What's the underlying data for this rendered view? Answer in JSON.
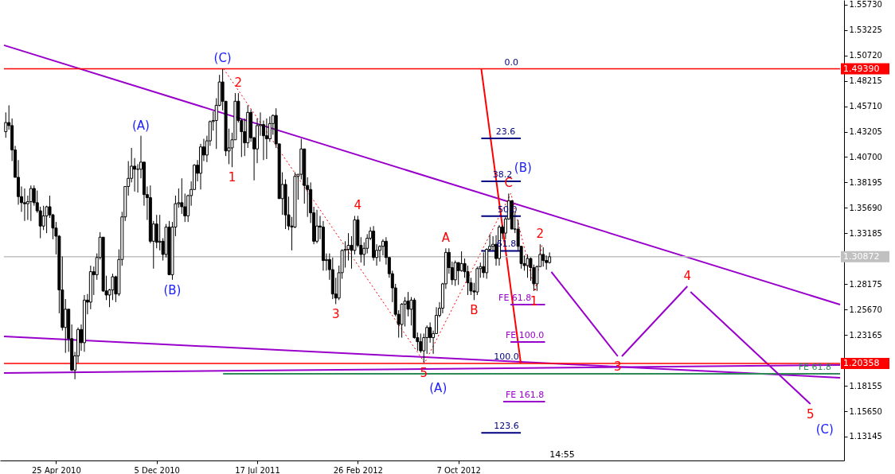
{
  "chart_data": {
    "type": "candlestick",
    "color": "#000000",
    "xlim": [
      "2009-12-30",
      "2015-02-04"
    ],
    "ylim": [
      1.1079,
      1.5618
    ],
    "xticks": [
      {
        "value": "2010-04-25",
        "label": "25 Apr 2010"
      },
      {
        "value": "2010-12-05",
        "label": "5 Dec 2010"
      },
      {
        "value": "2011-07-17",
        "label": "17 Jul 2011"
      },
      {
        "value": "2012-02-26",
        "label": "26 Feb 2012"
      },
      {
        "value": "2012-10-07",
        "label": "7 Oct 2012"
      }
    ],
    "yticks": [
      {
        "value": 1.5573,
        "label": "1.55730"
      },
      {
        "value": 1.53225,
        "label": "1.53225"
      },
      {
        "value": 1.5072,
        "label": "1.50720"
      },
      {
        "value": 1.48215,
        "label": "1.48215"
      },
      {
        "value": 1.4571,
        "label": "1.45710"
      },
      {
        "value": 1.43205,
        "label": "1.43205"
      },
      {
        "value": 1.407,
        "label": "1.40700"
      },
      {
        "value": 1.38195,
        "label": "1.38195"
      },
      {
        "value": 1.3569,
        "label": "1.35690"
      },
      {
        "value": 1.33185,
        "label": "1.33185"
      },
      {
        "value": 1.28175,
        "label": "1.28175"
      },
      {
        "value": 1.2567,
        "label": "1.25670"
      },
      {
        "value": 1.23165,
        "label": "1.23165"
      },
      {
        "value": 1.18155,
        "label": "1.18155"
      },
      {
        "value": 1.1565,
        "label": "1.15650"
      },
      {
        "value": 1.13145,
        "label": "1.13145"
      }
    ],
    "x": [
      "2010-01-03",
      "2010-01-10",
      "2010-01-17",
      "2010-01-24",
      "2010-01-31",
      "2010-02-07",
      "2010-02-14",
      "2010-02-21",
      "2010-02-28",
      "2010-03-07",
      "2010-03-14",
      "2010-03-21",
      "2010-03-28",
      "2010-04-04",
      "2010-04-11",
      "2010-04-18",
      "2010-04-25",
      "2010-05-02",
      "2010-05-09",
      "2010-05-16",
      "2010-05-23",
      "2010-05-30",
      "2010-06-06",
      "2010-06-13",
      "2010-06-20",
      "2010-06-27",
      "2010-07-04",
      "2010-07-11",
      "2010-07-18",
      "2010-07-25",
      "2010-08-01",
      "2010-08-08",
      "2010-08-15",
      "2010-08-22",
      "2010-08-29",
      "2010-09-05",
      "2010-09-12",
      "2010-09-19",
      "2010-09-26",
      "2010-10-03",
      "2010-10-10",
      "2010-10-17",
      "2010-10-24",
      "2010-10-31",
      "2010-11-07",
      "2010-11-14",
      "2010-11-21",
      "2010-11-28",
      "2010-12-05",
      "2010-12-12",
      "2010-12-19",
      "2010-12-26",
      "2011-01-02",
      "2011-01-09",
      "2011-01-16",
      "2011-01-23",
      "2011-01-30",
      "2011-02-06",
      "2011-02-13",
      "2011-02-20",
      "2011-02-27",
      "2011-03-06",
      "2011-03-13",
      "2011-03-20",
      "2011-03-27",
      "2011-04-03",
      "2011-04-10",
      "2011-04-17",
      "2011-04-24",
      "2011-05-01",
      "2011-05-08",
      "2011-05-15",
      "2011-05-22",
      "2011-05-29",
      "2011-06-05",
      "2011-06-12",
      "2011-06-19",
      "2011-06-26",
      "2011-07-03",
      "2011-07-10",
      "2011-07-17",
      "2011-07-24",
      "2011-07-31",
      "2011-08-07",
      "2011-08-14",
      "2011-08-21",
      "2011-08-28",
      "2011-09-04",
      "2011-09-11",
      "2011-09-18",
      "2011-09-25",
      "2011-10-02",
      "2011-10-09",
      "2011-10-16",
      "2011-10-23",
      "2011-10-30",
      "2011-11-06",
      "2011-11-13",
      "2011-11-20",
      "2011-11-27",
      "2011-12-04",
      "2011-12-11",
      "2011-12-18",
      "2011-12-25",
      "2012-01-01",
      "2012-01-08",
      "2012-01-15",
      "2012-01-22",
      "2012-01-29",
      "2012-02-05",
      "2012-02-12",
      "2012-02-19",
      "2012-02-26",
      "2012-03-04",
      "2012-03-11",
      "2012-03-18",
      "2012-03-25",
      "2012-04-01",
      "2012-04-08",
      "2012-04-15",
      "2012-04-22",
      "2012-04-29",
      "2012-05-06",
      "2012-05-13",
      "2012-05-20",
      "2012-05-27",
      "2012-06-03",
      "2012-06-10",
      "2012-06-17",
      "2012-06-24",
      "2012-07-01",
      "2012-07-08",
      "2012-07-15",
      "2012-07-22",
      "2012-07-29",
      "2012-08-05",
      "2012-08-12",
      "2012-08-19",
      "2012-08-26",
      "2012-09-02",
      "2012-09-09",
      "2012-09-16",
      "2012-09-23",
      "2012-09-30",
      "2012-10-07",
      "2012-10-14",
      "2012-10-21",
      "2012-10-28",
      "2012-11-04",
      "2012-11-11",
      "2012-11-18",
      "2012-11-25",
      "2012-12-02",
      "2012-12-09",
      "2012-12-16",
      "2012-12-23",
      "2012-12-30",
      "2013-01-06",
      "2013-01-13",
      "2013-01-20",
      "2013-01-27",
      "2013-02-03",
      "2013-02-10",
      "2013-02-17",
      "2013-02-24",
      "2013-03-03",
      "2013-03-10",
      "2013-03-17",
      "2013-03-24",
      "2013-03-31",
      "2013-04-07",
      "2013-04-14",
      "2013-04-21",
      "2013-04-28"
    ],
    "ohlc": [
      [
        1.432,
        1.451,
        1.426,
        1.441
      ],
      [
        1.441,
        1.458,
        1.434,
        1.438
      ],
      [
        1.438,
        1.445,
        1.403,
        1.414
      ],
      [
        1.414,
        1.418,
        1.387,
        1.387
      ],
      [
        1.387,
        1.404,
        1.36,
        1.368
      ],
      [
        1.368,
        1.378,
        1.353,
        1.362
      ],
      [
        1.362,
        1.376,
        1.344,
        1.361
      ],
      [
        1.361,
        1.369,
        1.345,
        1.363
      ],
      [
        1.363,
        1.379,
        1.344,
        1.376
      ],
      [
        1.376,
        1.379,
        1.359,
        1.362
      ],
      [
        1.362,
        1.374,
        1.352,
        1.354
      ],
      [
        1.354,
        1.358,
        1.327,
        1.339
      ],
      [
        1.339,
        1.359,
        1.335,
        1.349
      ],
      [
        1.349,
        1.359,
        1.332,
        1.358
      ],
      [
        1.358,
        1.369,
        1.347,
        1.35
      ],
      [
        1.35,
        1.351,
        1.326,
        1.337
      ],
      [
        1.337,
        1.343,
        1.311,
        1.329
      ],
      [
        1.329,
        1.33,
        1.253,
        1.276
      ],
      [
        1.276,
        1.309,
        1.236,
        1.239
      ],
      [
        1.239,
        1.267,
        1.214,
        1.257
      ],
      [
        1.257,
        1.257,
        1.215,
        1.228
      ],
      [
        1.228,
        1.242,
        1.196,
        1.197
      ],
      [
        1.197,
        1.215,
        1.188,
        1.211
      ],
      [
        1.211,
        1.239,
        1.204,
        1.237
      ],
      [
        1.237,
        1.242,
        1.216,
        1.224
      ],
      [
        1.224,
        1.271,
        1.215,
        1.266
      ],
      [
        1.266,
        1.272,
        1.252,
        1.264
      ],
      [
        1.264,
        1.3,
        1.257,
        1.294
      ],
      [
        1.294,
        1.299,
        1.271,
        1.291
      ],
      [
        1.291,
        1.312,
        1.286,
        1.308
      ],
      [
        1.308,
        1.333,
        1.306,
        1.328
      ],
      [
        1.328,
        1.328,
        1.274,
        1.275
      ],
      [
        1.275,
        1.29,
        1.266,
        1.271
      ],
      [
        1.271,
        1.277,
        1.259,
        1.276
      ],
      [
        1.276,
        1.292,
        1.266,
        1.289
      ],
      [
        1.289,
        1.29,
        1.264,
        1.272
      ],
      [
        1.272,
        1.316,
        1.27,
        1.306
      ],
      [
        1.306,
        1.353,
        1.3,
        1.348
      ],
      [
        1.348,
        1.378,
        1.344,
        1.378
      ],
      [
        1.378,
        1.403,
        1.369,
        1.386
      ],
      [
        1.386,
        1.416,
        1.382,
        1.398
      ],
      [
        1.398,
        1.406,
        1.373,
        1.395
      ],
      [
        1.395,
        1.4,
        1.372,
        1.395
      ],
      [
        1.395,
        1.428,
        1.386,
        1.402
      ],
      [
        1.402,
        1.402,
        1.359,
        1.37
      ],
      [
        1.37,
        1.378,
        1.345,
        1.367
      ],
      [
        1.367,
        1.379,
        1.322,
        1.324
      ],
      [
        1.324,
        1.344,
        1.297,
        1.341
      ],
      [
        1.341,
        1.35,
        1.317,
        1.323
      ],
      [
        1.323,
        1.35,
        1.315,
        1.324
      ],
      [
        1.324,
        1.327,
        1.305,
        1.311
      ],
      [
        1.311,
        1.341,
        1.308,
        1.338
      ],
      [
        1.338,
        1.344,
        1.291,
        1.291
      ],
      [
        1.291,
        1.343,
        1.286,
        1.338
      ],
      [
        1.338,
        1.369,
        1.329,
        1.361
      ],
      [
        1.361,
        1.376,
        1.357,
        1.362
      ],
      [
        1.362,
        1.386,
        1.351,
        1.358
      ],
      [
        1.358,
        1.371,
        1.343,
        1.349
      ],
      [
        1.349,
        1.37,
        1.343,
        1.369
      ],
      [
        1.369,
        1.383,
        1.359,
        1.375
      ],
      [
        1.375,
        1.4,
        1.375,
        1.399
      ],
      [
        1.399,
        1.404,
        1.383,
        1.391
      ],
      [
        1.391,
        1.42,
        1.375,
        1.417
      ],
      [
        1.417,
        1.425,
        1.403,
        1.409
      ],
      [
        1.409,
        1.428,
        1.402,
        1.423
      ],
      [
        1.423,
        1.443,
        1.418,
        1.442
      ],
      [
        1.442,
        1.452,
        1.433,
        1.443
      ],
      [
        1.443,
        1.465,
        1.415,
        1.458
      ],
      [
        1.458,
        1.488,
        1.457,
        1.481
      ],
      [
        1.481,
        1.494,
        1.453,
        1.462
      ],
      [
        1.462,
        1.462,
        1.408,
        1.413
      ],
      [
        1.413,
        1.435,
        1.4,
        1.416
      ],
      [
        1.416,
        1.431,
        1.397,
        1.424
      ],
      [
        1.424,
        1.47,
        1.424,
        1.462
      ],
      [
        1.462,
        1.47,
        1.441,
        1.443
      ],
      [
        1.443,
        1.445,
        1.407,
        1.432
      ],
      [
        1.432,
        1.445,
        1.408,
        1.421
      ],
      [
        1.421,
        1.458,
        1.416,
        1.451
      ],
      [
        1.451,
        1.454,
        1.422,
        1.426
      ],
      [
        1.426,
        1.427,
        1.384,
        1.415
      ],
      [
        1.415,
        1.445,
        1.401,
        1.438
      ],
      [
        1.438,
        1.451,
        1.428,
        1.439
      ],
      [
        1.439,
        1.443,
        1.404,
        1.428
      ],
      [
        1.428,
        1.445,
        1.405,
        1.425
      ],
      [
        1.425,
        1.447,
        1.422,
        1.44
      ],
      [
        1.44,
        1.449,
        1.429,
        1.448
      ],
      [
        1.448,
        1.455,
        1.416,
        1.42
      ],
      [
        1.42,
        1.42,
        1.366,
        1.366
      ],
      [
        1.366,
        1.392,
        1.35,
        1.38
      ],
      [
        1.38,
        1.385,
        1.336,
        1.35
      ],
      [
        1.35,
        1.368,
        1.335,
        1.339
      ],
      [
        1.339,
        1.348,
        1.315,
        1.338
      ],
      [
        1.338,
        1.392,
        1.337,
        1.388
      ],
      [
        1.388,
        1.39,
        1.365,
        1.39
      ],
      [
        1.39,
        1.425,
        1.385,
        1.415
      ],
      [
        1.415,
        1.415,
        1.361,
        1.379
      ],
      [
        1.379,
        1.387,
        1.348,
        1.375
      ],
      [
        1.375,
        1.382,
        1.342,
        1.352
      ],
      [
        1.352,
        1.358,
        1.321,
        1.324
      ],
      [
        1.324,
        1.355,
        1.322,
        1.339
      ],
      [
        1.339,
        1.349,
        1.326,
        1.338
      ],
      [
        1.338,
        1.344,
        1.295,
        1.305
      ],
      [
        1.305,
        1.312,
        1.295,
        1.306
      ],
      [
        1.306,
        1.312,
        1.286,
        1.296
      ],
      [
        1.296,
        1.308,
        1.267,
        1.272
      ],
      [
        1.272,
        1.288,
        1.262,
        1.268
      ],
      [
        1.268,
        1.3,
        1.266,
        1.293
      ],
      [
        1.293,
        1.316,
        1.287,
        1.315
      ],
      [
        1.315,
        1.324,
        1.298,
        1.316
      ],
      [
        1.316,
        1.332,
        1.305,
        1.32
      ],
      [
        1.32,
        1.329,
        1.297,
        1.315
      ],
      [
        1.315,
        1.349,
        1.311,
        1.345
      ],
      [
        1.345,
        1.349,
        1.318,
        1.32
      ],
      [
        1.32,
        1.328,
        1.303,
        1.311
      ],
      [
        1.311,
        1.323,
        1.3,
        1.317
      ],
      [
        1.317,
        1.331,
        1.312,
        1.327
      ],
      [
        1.327,
        1.338,
        1.325,
        1.334
      ],
      [
        1.334,
        1.339,
        1.305,
        1.308
      ],
      [
        1.308,
        1.321,
        1.3,
        1.315
      ],
      [
        1.315,
        1.32,
        1.304,
        1.319
      ],
      [
        1.319,
        1.326,
        1.31,
        1.324
      ],
      [
        1.324,
        1.328,
        1.301,
        1.308
      ],
      [
        1.308,
        1.308,
        1.288,
        1.292
      ],
      [
        1.292,
        1.295,
        1.264,
        1.278
      ],
      [
        1.278,
        1.282,
        1.25,
        1.252
      ],
      [
        1.252,
        1.256,
        1.229,
        1.242
      ],
      [
        1.242,
        1.263,
        1.229,
        1.262
      ],
      [
        1.262,
        1.269,
        1.24,
        1.265
      ],
      [
        1.265,
        1.274,
        1.25,
        1.257
      ],
      [
        1.257,
        1.269,
        1.241,
        1.266
      ],
      [
        1.266,
        1.268,
        1.228,
        1.229
      ],
      [
        1.229,
        1.234,
        1.216,
        1.225
      ],
      [
        1.225,
        1.233,
        1.214,
        1.216
      ],
      [
        1.216,
        1.233,
        1.2042,
        1.229
      ],
      [
        1.229,
        1.241,
        1.213,
        1.239
      ],
      [
        1.239,
        1.244,
        1.224,
        1.229
      ],
      [
        1.229,
        1.236,
        1.213,
        1.233
      ],
      [
        1.233,
        1.259,
        1.233,
        1.251
      ],
      [
        1.251,
        1.264,
        1.249,
        1.258
      ],
      [
        1.258,
        1.283,
        1.253,
        1.282
      ],
      [
        1.282,
        1.317,
        1.277,
        1.313
      ],
      [
        1.313,
        1.317,
        1.292,
        1.298
      ],
      [
        1.298,
        1.304,
        1.281,
        1.286
      ],
      [
        1.286,
        1.305,
        1.28,
        1.303
      ],
      [
        1.303,
        1.303,
        1.281,
        1.295
      ],
      [
        1.295,
        1.314,
        1.294,
        1.302
      ],
      [
        1.302,
        1.307,
        1.288,
        1.294
      ],
      [
        1.294,
        1.3,
        1.271,
        1.283
      ],
      [
        1.283,
        1.288,
        1.271,
        1.275
      ],
      [
        1.275,
        1.283,
        1.266,
        1.274
      ],
      [
        1.274,
        1.299,
        1.271,
        1.297
      ],
      [
        1.297,
        1.303,
        1.288,
        1.299
      ],
      [
        1.299,
        1.313,
        1.288,
        1.293
      ],
      [
        1.293,
        1.317,
        1.287,
        1.316
      ],
      [
        1.316,
        1.331,
        1.314,
        1.319
      ],
      [
        1.319,
        1.329,
        1.315,
        1.321
      ],
      [
        1.321,
        1.33,
        1.3,
        1.307
      ],
      [
        1.307,
        1.34,
        1.3,
        1.338
      ],
      [
        1.338,
        1.34,
        1.326,
        1.332
      ],
      [
        1.332,
        1.348,
        1.326,
        1.346
      ],
      [
        1.346,
        1.3711,
        1.345,
        1.364
      ],
      [
        1.364,
        1.364,
        1.336,
        1.336
      ],
      [
        1.336,
        1.352,
        1.332,
        1.336
      ],
      [
        1.336,
        1.345,
        1.315,
        1.319
      ],
      [
        1.319,
        1.319,
        1.297,
        1.302
      ],
      [
        1.302,
        1.31,
        1.295,
        1.3
      ],
      [
        1.3,
        1.311,
        1.288,
        1.307
      ],
      [
        1.307,
        1.308,
        1.285,
        1.298
      ],
      [
        1.298,
        1.301,
        1.275,
        1.282
      ],
      [
        1.282,
        1.3,
        1.275,
        1.299
      ],
      [
        1.299,
        1.321,
        1.299,
        1.311
      ],
      [
        1.311,
        1.318,
        1.299,
        1.305
      ],
      [
        1.305,
        1.31,
        1.296,
        1.303
      ],
      [
        1.303,
        1.313,
        1.302,
        1.3087
      ]
    ],
    "series": [
      {
        "type": "line",
        "color": "#9900cc",
        "x": [
          "2009-12-30",
          "2015-02-04"
        ],
        "values": [
          1.5172,
          1.2616
        ]
      },
      {
        "type": "line",
        "color": "#9900cc",
        "x": [
          "2009-12-30",
          "2015-02-04"
        ],
        "values": [
          1.2302,
          1.1895
        ]
      },
      {
        "type": "line",
        "color": "#9900cc",
        "x": [
          "2009-12-30",
          "2015-02-04"
        ],
        "values": [
          1.1942,
          1.202
        ]
      },
      {
        "type": "line",
        "color": "#2e8b57",
        "x": [
          "2011-05-02",
          "2015-02-04"
        ],
        "values": [
          1.1934,
          1.1934
        ]
      },
      {
        "type": "line",
        "color": "#ff0000",
        "line_style": "dotted",
        "x": [
          "2011-05-03",
          "2012-07-24",
          "2013-02-01",
          "2013-03-27",
          "2013-04-11"
        ],
        "values": [
          1.494,
          1.2042,
          1.3711,
          1.2745,
          1.3203
        ]
      },
      {
        "type": "line",
        "color": "#ff0000",
        "x": [
          "2012-11-27",
          "2013-02-23"
        ],
        "values": [
          1.4939,
          1.2036
        ]
      },
      {
        "type": "line",
        "color": "#000080",
        "x": [
          "2012-11-27",
          "2013-02-23"
        ],
        "values": [
          1.4254,
          1.4254
        ]
      },
      {
        "type": "line",
        "color": "#000080",
        "x": [
          "2012-11-27",
          "2013-02-23"
        ],
        "values": [
          1.383,
          1.383
        ]
      },
      {
        "type": "line",
        "color": "#000080",
        "x": [
          "2012-11-27",
          "2013-02-23"
        ],
        "values": [
          1.3488,
          1.3488
        ]
      },
      {
        "type": "line",
        "color": "#000080",
        "x": [
          "2012-11-27",
          "2013-02-23"
        ],
        "values": [
          1.3145,
          1.3145
        ]
      },
      {
        "type": "line",
        "color": "#000080",
        "x": [
          "2012-11-27",
          "2013-02-23"
        ],
        "values": [
          1.1351,
          1.1351
        ]
      },
      {
        "type": "line",
        "color": "#9900cc",
        "x": [
          "2013-01-31",
          "2013-04-18"
        ],
        "values": [
          1.2616,
          1.2616
        ]
      },
      {
        "type": "line",
        "color": "#9900cc",
        "x": [
          "2013-01-31",
          "2013-04-18"
        ],
        "values": [
          1.2247,
          1.2247
        ]
      },
      {
        "type": "line",
        "color": "#9900cc",
        "x": [
          "2013-01-15",
          "2013-04-18"
        ],
        "values": [
          1.1659,
          1.1659
        ]
      },
      {
        "type": "line",
        "color": "#9900cc",
        "x": [
          "2013-05-02",
          "2013-09-27"
        ],
        "values": [
          1.2937,
          1.2106
        ]
      },
      {
        "type": "line",
        "color": "#9900cc",
        "x": [
          "2013-10-06",
          "2014-03-01"
        ],
        "values": [
          1.2106,
          1.2796
        ]
      },
      {
        "type": "line",
        "color": "#9900cc",
        "x": [
          "2014-03-08",
          "2014-11-30"
        ],
        "values": [
          1.2741,
          1.1636
        ]
      }
    ],
    "ref_lines": [
      {
        "axis": "y",
        "value": 1.4939,
        "label": "1.49390",
        "color": "#ff0000"
      },
      {
        "axis": "y",
        "value": 1.20358,
        "label": "1.20358",
        "color": "#ff0000"
      },
      {
        "axis": "y",
        "value": 1.30872,
        "label": "1.30872",
        "color": "#c0c0c0"
      }
    ],
    "annotations": [
      {
        "text": "(A)",
        "x": "2010-10-31",
        "y": 1.428
      },
      {
        "text": "(B)",
        "x": "2011-01-09",
        "y": 1.286
      },
      {
        "text": "(C)",
        "x": "2011-05-01",
        "y": 1.494
      },
      {
        "text": "1",
        "x": "2011-05-22",
        "y": 1.397
      },
      {
        "text": "2",
        "x": "2011-06-05",
        "y": 1.47
      },
      {
        "text": "3",
        "x": "2012-01-08",
        "y": 1.262
      },
      {
        "text": "4",
        "x": "2012-02-26",
        "y": 1.349
      },
      {
        "text": "5",
        "x": "2012-07-22",
        "y": 1.2042
      },
      {
        "text": "(A)",
        "x": "2012-07-22",
        "y": 1.2042
      },
      {
        "text": "A",
        "x": "2012-09-09",
        "y": 1.317
      },
      {
        "text": "B",
        "x": "2012-11-11",
        "y": 1.266
      },
      {
        "text": "C",
        "x": "2013-01-27",
        "y": 1.3711
      },
      {
        "text": "(B)",
        "x": "2013-01-27",
        "y": 1.3711
      },
      {
        "text": "1",
        "x": "2013-03-24",
        "y": 1.275
      },
      {
        "text": "2",
        "x": "2013-04-07",
        "y": 1.321
      },
      {
        "text": "3",
        "x": "2013-09-27",
        "y": 1.2106
      },
      {
        "text": "4",
        "x": "2014-03-01",
        "y": 1.2796
      },
      {
        "text": "5",
        "x": "2014-11-30",
        "y": 1.1636
      },
      {
        "text": "(C)",
        "x": "2014-11-30",
        "y": 1.1636
      },
      {
        "text": "0.0",
        "x": "2013-02-02",
        "y": 1.4939
      },
      {
        "text": "23.6",
        "x": "2013-01-20",
        "y": 1.4254
      },
      {
        "text": "38.2",
        "x": "2013-01-13",
        "y": 1.383
      },
      {
        "text": "50.0",
        "x": "2013-01-24",
        "y": 1.3488
      },
      {
        "text": "61.8",
        "x": "2013-01-22",
        "y": 1.3145
      },
      {
        "text": "100.0",
        "x": "2013-01-22",
        "y": 1.20358
      },
      {
        "text": "123.6",
        "x": "2013-01-22",
        "y": 1.1351
      },
      {
        "text": "FE 61.8",
        "x": "2013-02-10",
        "y": 1.2616
      },
      {
        "text": "FE 100.0",
        "x": "2013-03-04",
        "y": 1.2247
      },
      {
        "text": "FE 161.8",
        "x": "2013-03-04",
        "y": 1.1659
      },
      {
        "text": "FE 61.8",
        "x": "2014-12-10",
        "y": 1.1934
      },
      "14:55"
    ]
  }
}
